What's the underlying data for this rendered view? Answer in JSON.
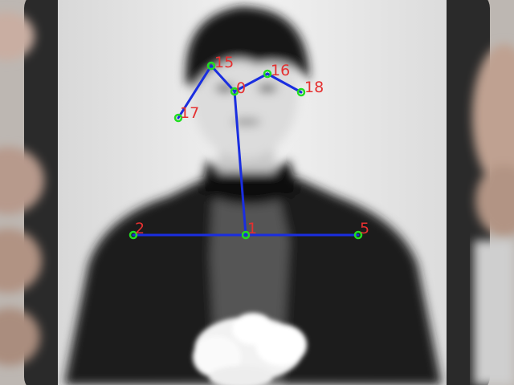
{
  "pose": {
    "keypoints": [
      {
        "id": "0",
        "label": "0"
      },
      {
        "id": "1",
        "label": "1"
      },
      {
        "id": "2",
        "label": "2"
      },
      {
        "id": "5",
        "label": "5"
      },
      {
        "id": "15",
        "label": "15"
      },
      {
        "id": "16",
        "label": "16"
      },
      {
        "id": "17",
        "label": "17"
      },
      {
        "id": "18",
        "label": "18"
      }
    ],
    "skeleton": [
      [
        "0",
        "1"
      ],
      [
        "1",
        "2"
      ],
      [
        "1",
        "5"
      ],
      [
        "0",
        "15"
      ],
      [
        "15",
        "17"
      ],
      [
        "0",
        "16"
      ],
      [
        "16",
        "18"
      ]
    ],
    "colors": {
      "limb": "#1a2ee0",
      "point": "#22dd22",
      "label": "#e53030"
    }
  }
}
